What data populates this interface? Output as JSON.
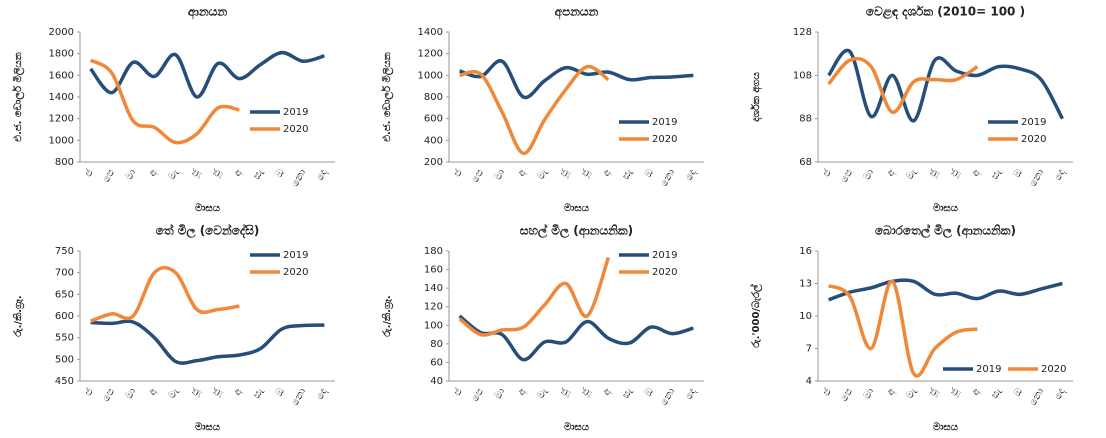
{
  "chart_data": [
    {
      "type": "line",
      "title": "ආනයන",
      "y_label": "එ.ජ. ඩොලර් මිලියන",
      "x_label": "මාසය",
      "categories": [
        "ජ",
        "පෙ",
        "මා",
        "අ",
        "මැ",
        "ජූ",
        "ජූ",
        "අ",
        "සැ",
        "ඔ",
        "නො",
        "දෙ"
      ],
      "series": [
        {
          "name": "2019",
          "color": "#264e7a",
          "values": [
            1660,
            1440,
            1720,
            1590,
            1790,
            1400,
            1710,
            1570,
            1700,
            1810,
            1730,
            1780
          ]
        },
        {
          "name": "2020",
          "color": "#f0883a",
          "values": [
            1740,
            1620,
            1180,
            1120,
            980,
            1060,
            1300,
            1280,
            null,
            null,
            null,
            null
          ]
        }
      ],
      "ylim": [
        800,
        2000
      ],
      "yticks": [
        800,
        1000,
        1200,
        1400,
        1600,
        1800,
        2000
      ],
      "legend": "right"
    },
    {
      "type": "line",
      "title": "අපනයන",
      "y_label": "එ.ජ. ඩොලර් මිලියන",
      "x_label": "මාසය",
      "categories": [
        "ජ",
        "පෙ",
        "මා",
        "අ",
        "මැ",
        "ජූ",
        "ජූ",
        "අ",
        "සැ",
        "ඔ",
        "නො",
        "දෙ"
      ],
      "series": [
        {
          "name": "2019",
          "color": "#264e7a",
          "values": [
            1040,
            990,
            1130,
            800,
            950,
            1070,
            1010,
            1030,
            960,
            980,
            985,
            1000
          ]
        },
        {
          "name": "2020",
          "color": "#f0883a",
          "values": [
            1000,
            1010,
            660,
            280,
            590,
            870,
            1080,
            960,
            null,
            null,
            null,
            null
          ]
        }
      ],
      "ylim": [
        200,
        1400
      ],
      "yticks": [
        200,
        400,
        600,
        800,
        1000,
        1200,
        1400
      ],
      "legend": "lower right"
    },
    {
      "type": "line",
      "title": "වෙළඳ දර්ශක (2010= 100 )",
      "y_label": "දර්ශක අගය",
      "x_label": "මාසය",
      "categories": [
        "ජ",
        "පෙ",
        "මා",
        "අ",
        "මැ",
        "ජූ",
        "ජූ",
        "අ",
        "සැ",
        "ඔ",
        "නො",
        "දෙ"
      ],
      "series": [
        {
          "name": "2019",
          "color": "#264e7a",
          "values": [
            108,
            119,
            89,
            108,
            87,
            115,
            110,
            108,
            112,
            111,
            106,
            88
          ]
        },
        {
          "name": "2020",
          "color": "#f0883a",
          "values": [
            104,
            115,
            112,
            91,
            105,
            106,
            106,
            112,
            null,
            null,
            null,
            null
          ]
        }
      ],
      "ylim": [
        68,
        128
      ],
      "yticks": [
        68,
        88,
        108,
        128
      ],
      "legend": "lower right"
    },
    {
      "type": "line",
      "title": "තේ මිල (වෙන්දේසි)",
      "y_label": "රු./කි.ග්‍රෑ.",
      "x_label": "මාසය",
      "categories": [
        "ජ",
        "පෙ",
        "මා",
        "අ",
        "මැ",
        "ජූ",
        "ජූ",
        "අ",
        "සැ",
        "ඔ",
        "නො",
        "දෙ"
      ],
      "series": [
        {
          "name": "2019",
          "color": "#264e7a",
          "values": [
            585,
            583,
            586,
            550,
            495,
            497,
            506,
            510,
            525,
            570,
            578,
            579
          ]
        },
        {
          "name": "2020",
          "color": "#f0883a",
          "values": [
            588,
            605,
            600,
            700,
            700,
            615,
            615,
            623,
            null,
            null,
            null,
            null
          ]
        }
      ],
      "ylim": [
        450,
        750
      ],
      "yticks": [
        450,
        500,
        550,
        600,
        650,
        700,
        750
      ],
      "legend": "upper right"
    },
    {
      "type": "line",
      "title": "සහල් මිල (ආනයනික)",
      "y_label": "රු./කි.ග්‍රෑ.",
      "x_label": "මාසය",
      "categories": [
        "ජ",
        "පෙ",
        "මා",
        "අ",
        "මැ",
        "ජූ",
        "ජූ",
        "අ",
        "සැ",
        "ඔ",
        "නො",
        "දෙ"
      ],
      "series": [
        {
          "name": "2019",
          "color": "#264e7a",
          "values": [
            110,
            92,
            90,
            63,
            82,
            82,
            104,
            86,
            81,
            98,
            91,
            97
          ]
        },
        {
          "name": "2020",
          "color": "#f0883a",
          "values": [
            107,
            90,
            95,
            98,
            122,
            145,
            110,
            173,
            null,
            null,
            null,
            null
          ]
        }
      ],
      "ylim": [
        40,
        180
      ],
      "yticks": [
        40,
        60,
        80,
        100,
        120,
        140,
        160,
        180
      ],
      "legend": "upper right"
    },
    {
      "type": "line",
      "title": "බොරතෙල් මිල (ආනයනික)",
      "y_label": "රු.'000/බැරල්",
      "x_label": "මාසය",
      "categories": [
        "ජ",
        "පෙ",
        "මා",
        "අ",
        "මැ",
        "ජූ",
        "ජූ",
        "අ",
        "සැ",
        "ඔ",
        "නො",
        "දෙ"
      ],
      "series": [
        {
          "name": "2019",
          "color": "#264e7a",
          "values": [
            11.5,
            12.2,
            12.6,
            13.2,
            13.2,
            12,
            12.1,
            11.6,
            12.3,
            12,
            12.5,
            13
          ]
        },
        {
          "name": "2020",
          "color": "#f0883a",
          "values": [
            12.8,
            11.8,
            7,
            13.2,
            4.7,
            7,
            8.5,
            8.8,
            null,
            null,
            null,
            null
          ]
        }
      ],
      "ylim": [
        4,
        16
      ],
      "yticks": [
        4,
        7,
        10,
        13,
        16
      ],
      "legend": "bottom"
    }
  ]
}
